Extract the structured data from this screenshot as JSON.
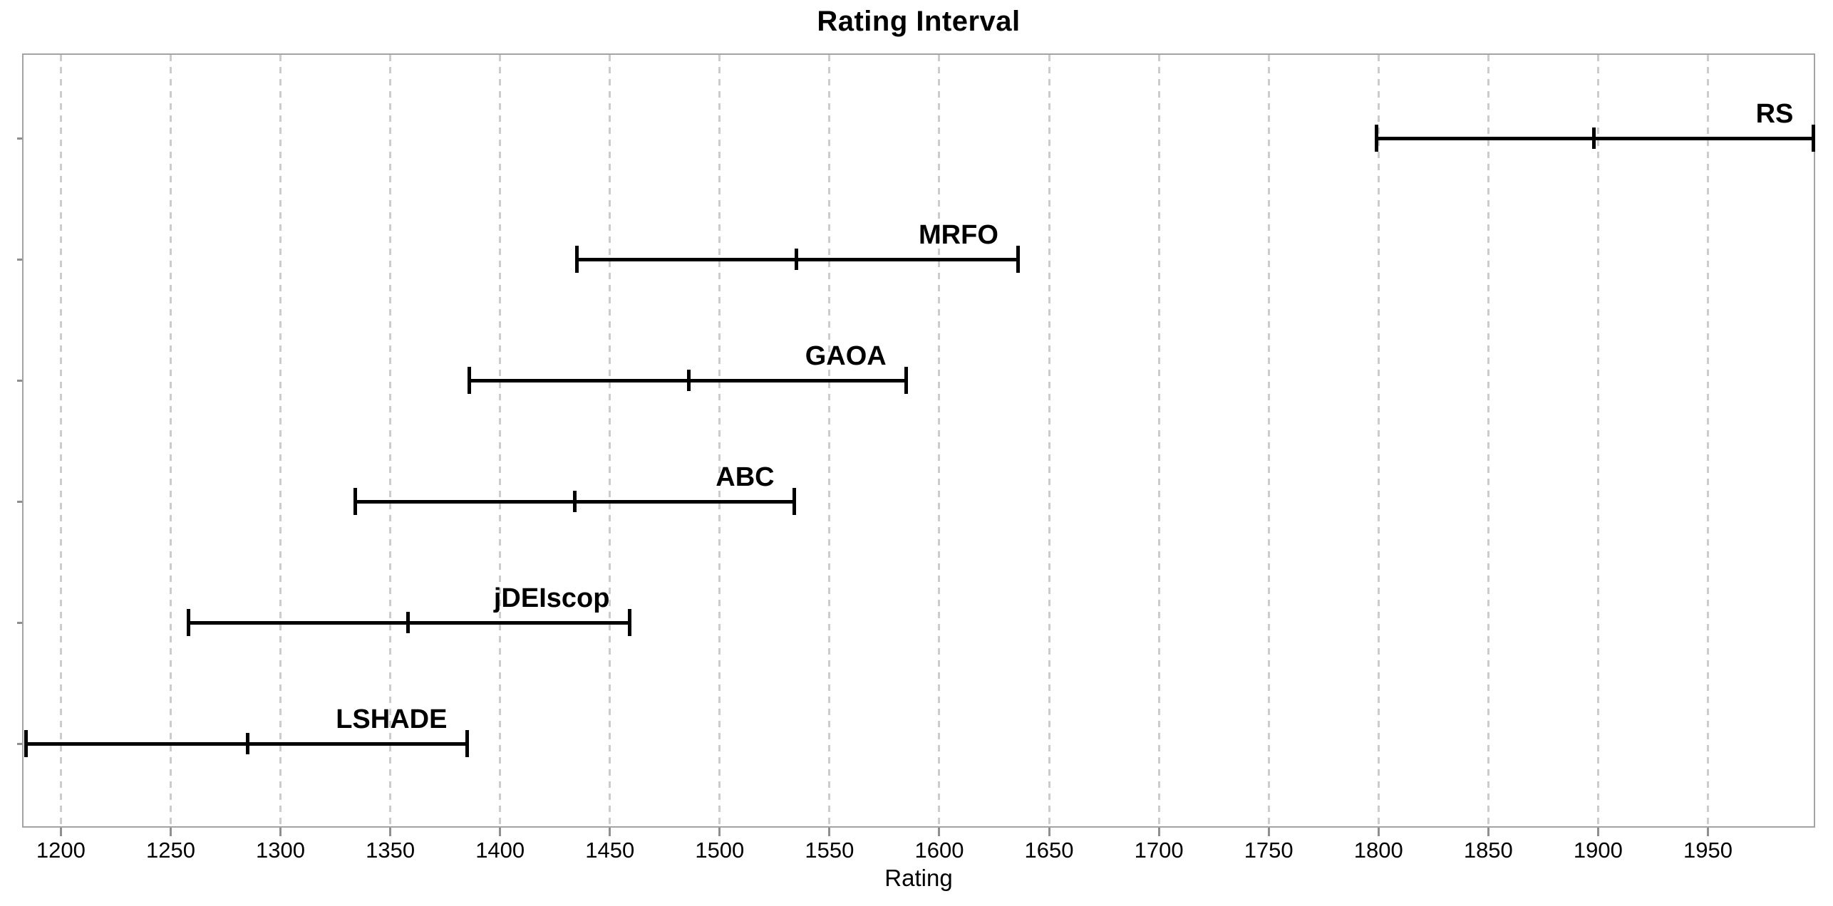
{
  "title": "Rating Interval",
  "xlabel": "Rating",
  "colors": {
    "background": "#ffffff",
    "plot_border": "#a3a3a3",
    "gridline": "#cccccc",
    "tick": "#8f8f8f",
    "bar": "#000000",
    "text": "#000000"
  },
  "chart_data": {
    "type": "interval",
    "orientation": "horizontal",
    "title": "Rating Interval",
    "xlabel": "Rating",
    "ylabel": "",
    "xlim": [
      1183,
      1999.5
    ],
    "xticks": [
      1200,
      1250,
      1300,
      1350,
      1400,
      1450,
      1500,
      1550,
      1600,
      1650,
      1700,
      1750,
      1800,
      1850,
      1900,
      1950
    ],
    "grid": "vertical-dashed",
    "legend": "labels-above-bars",
    "series": [
      {
        "name": "RS",
        "low": 1799,
        "mid": 1898,
        "high": 1998
      },
      {
        "name": "MRFO",
        "low": 1435,
        "mid": 1535,
        "high": 1636
      },
      {
        "name": "GAOA",
        "low": 1386,
        "mid": 1486,
        "high": 1585
      },
      {
        "name": "ABC",
        "low": 1334,
        "mid": 1434,
        "high": 1534
      },
      {
        "name": "jDEIscop",
        "low": 1258,
        "mid": 1358,
        "high": 1459
      },
      {
        "name": "LSHADE",
        "low": 1184,
        "mid": 1285,
        "high": 1385
      }
    ]
  }
}
